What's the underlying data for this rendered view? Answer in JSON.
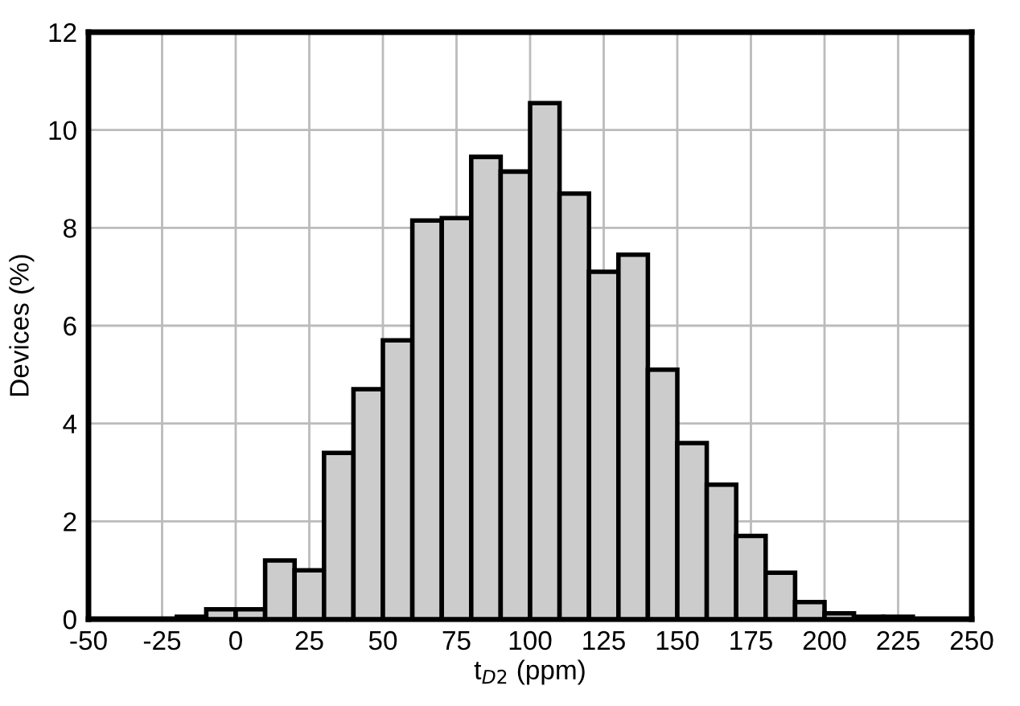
{
  "chart_data": {
    "type": "histogram",
    "xlabel": "t$_{D2}$ (ppm)",
    "ylabel": "Devices (%)",
    "bins": [
      -20,
      -10,
      0,
      10,
      20,
      30,
      40,
      50,
      60,
      70,
      80,
      90,
      100,
      110,
      120,
      130,
      140,
      150,
      160,
      170,
      180,
      190,
      200,
      210,
      220,
      230
    ],
    "values": [
      0.05,
      0.2,
      0.2,
      1.2,
      1.0,
      3.4,
      4.7,
      5.7,
      8.15,
      8.2,
      9.45,
      9.15,
      10.55,
      8.7,
      7.1,
      7.45,
      5.1,
      3.6,
      2.75,
      1.7,
      0.95,
      0.35,
      0.12,
      0.05,
      0.05
    ],
    "color": "#cccccc",
    "xlim": [
      -50,
      250
    ],
    "xticks": [
      -50,
      -25,
      0,
      25,
      50,
      75,
      100,
      125,
      150,
      175,
      200,
      225,
      250
    ],
    "ylim": [
      0,
      12
    ],
    "yticks": [
      0,
      2,
      4,
      6,
      8,
      10,
      12
    ],
    "grid": true
  }
}
